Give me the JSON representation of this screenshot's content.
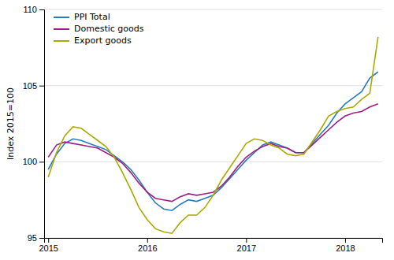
{
  "chart_data": {
    "type": "line",
    "ylabel": "Index 2015=100",
    "categories": [
      "2015",
      null,
      null,
      null,
      null,
      null,
      null,
      null,
      null,
      null,
      null,
      null,
      "2016",
      null,
      null,
      null,
      null,
      null,
      null,
      null,
      null,
      null,
      null,
      null,
      "2017",
      null,
      null,
      null,
      null,
      null,
      null,
      null,
      null,
      null,
      null,
      null,
      "2018",
      null,
      null,
      null,
      null
    ],
    "series": [
      {
        "name": "PPI Total",
        "color": "#2b7bba",
        "values": [
          99.5,
          100.5,
          101.2,
          101.5,
          101.4,
          101.2,
          101.0,
          100.8,
          100.4,
          100.0,
          99.5,
          98.8,
          98.0,
          97.3,
          96.9,
          96.8,
          97.2,
          97.5,
          97.4,
          97.6,
          97.8,
          98.3,
          98.9,
          99.5,
          100.1,
          100.6,
          101.1,
          101.3,
          101.1,
          100.9,
          100.6,
          100.6,
          101.2,
          101.8,
          102.4,
          103.2,
          103.8,
          104.2,
          104.6,
          105.5,
          105.9
        ]
      },
      {
        "name": "Domestic goods",
        "color": "#9E1F84",
        "values": [
          100.3,
          101.1,
          101.3,
          101.2,
          101.1,
          101.0,
          100.9,
          100.6,
          100.3,
          99.9,
          99.3,
          98.6,
          98.0,
          97.6,
          97.5,
          97.4,
          97.7,
          97.9,
          97.8,
          97.9,
          98.0,
          98.4,
          99.0,
          99.7,
          100.3,
          100.7,
          101.0,
          101.2,
          101.0,
          100.9,
          100.6,
          100.6,
          101.1,
          101.6,
          102.1,
          102.6,
          103.0,
          103.2,
          103.3,
          103.6,
          103.8
        ]
      },
      {
        "name": "Export goods",
        "color": "#AAAA00",
        "values": [
          99.0,
          100.6,
          101.7,
          102.3,
          102.2,
          101.8,
          101.4,
          101.0,
          100.3,
          99.3,
          98.2,
          97.0,
          96.2,
          95.6,
          95.4,
          95.3,
          96.0,
          96.5,
          96.5,
          97.0,
          97.8,
          98.8,
          99.6,
          100.4,
          101.2,
          101.5,
          101.4,
          101.1,
          100.9,
          100.5,
          100.4,
          100.5,
          101.3,
          102.1,
          103.0,
          103.3,
          103.5,
          103.6,
          104.1,
          104.5,
          108.2
        ]
      }
    ],
    "ylim": [
      95,
      110
    ],
    "yticks": [
      95,
      100,
      105,
      110
    ],
    "grid": true,
    "legend": "upper left"
  }
}
